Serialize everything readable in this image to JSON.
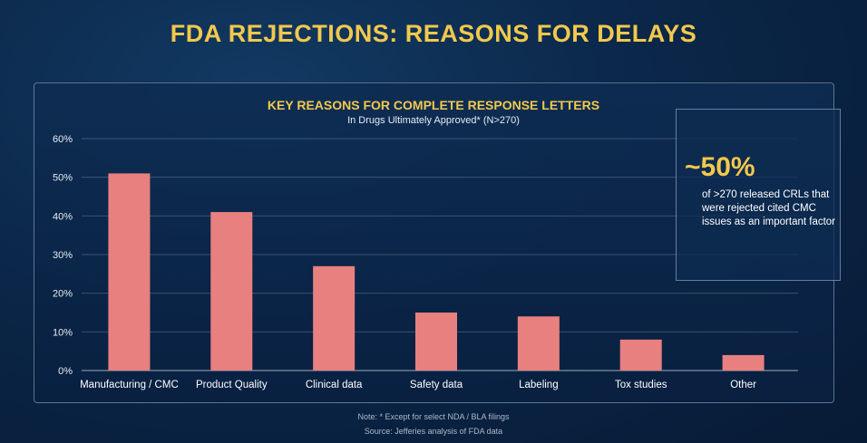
{
  "title": "FDA REJECTIONS: REASONS FOR DELAYS",
  "callout": {
    "headline": "~50%",
    "text": "of >270 released CRLs that were rejected cited CMC issues as an important factor"
  },
  "footnote": "Note: * Except for select NDA / BLA filings",
  "source": "Source: Jefferies analysis of FDA data",
  "colors": {
    "bar": "#e88080",
    "accent": "#f2c94c"
  },
  "chart_data": {
    "type": "bar",
    "title": "KEY REASONS FOR COMPLETE RESPONSE LETTERS",
    "subtitle": "In Drugs Ultimately Approved* (N>270)",
    "categories": [
      "Manufacturing / CMC",
      "Product Quality",
      "Clinical data",
      "Safety data",
      "Labeling",
      "Tox studies",
      "Other"
    ],
    "values": [
      51,
      41,
      27,
      15,
      14,
      8,
      4
    ],
    "yticks": [
      "0%",
      "10%",
      "20%",
      "30%",
      "40%",
      "50%",
      "60%"
    ],
    "ylim": [
      0,
      60
    ],
    "xlabel": "",
    "ylabel": "",
    "grid": true,
    "legend": "none"
  }
}
